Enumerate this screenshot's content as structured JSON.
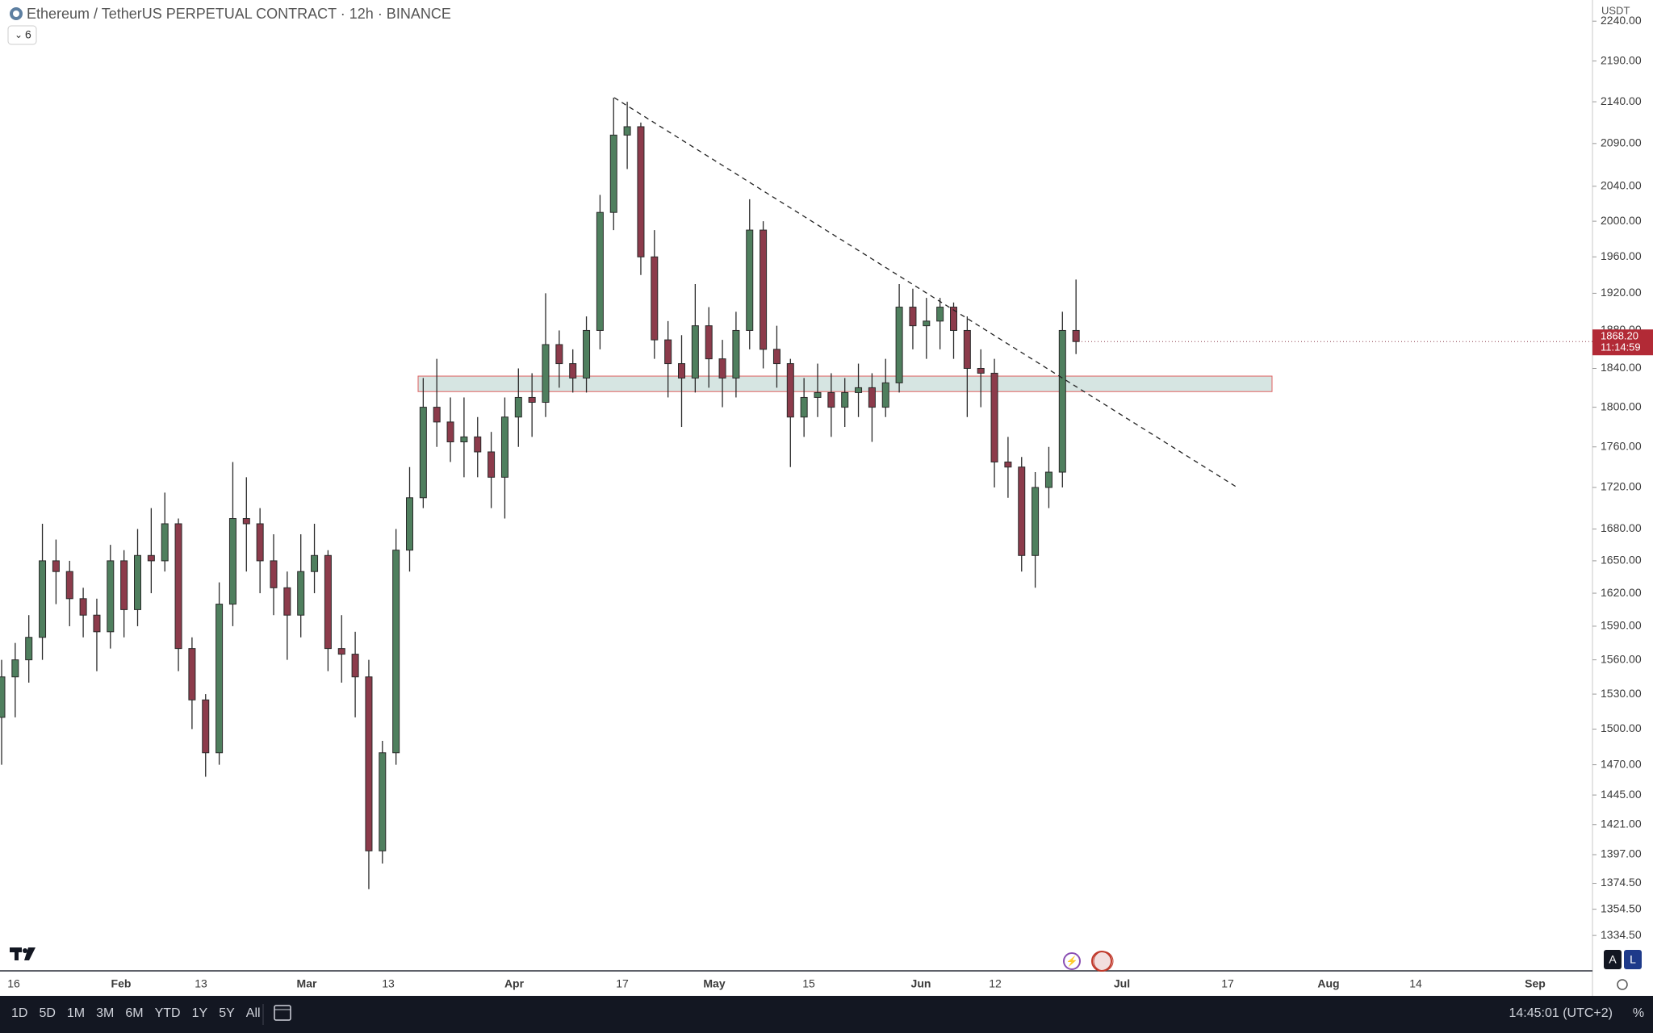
{
  "ui": {
    "ranges": [
      "1D",
      "5D",
      "1M",
      "3M",
      "6M",
      "YTD",
      "1Y",
      "5Y",
      "All"
    ],
    "clock": "14:45:01 (UTC+2)",
    "percent": "%",
    "currency": "USDT",
    "indicators": "6",
    "scale_buttons": [
      "A",
      "L"
    ]
  },
  "chart_data": {
    "type": "candlestick",
    "title": "Ethereum / TetherUS PERPETUAL CONTRACT · 12h · BINANCE",
    "log_scale": true,
    "up_color": "#4f7f5e",
    "down_color": "#8c3b4b",
    "open": [
      1510,
      1545,
      1560,
      1580,
      1650,
      1640,
      1615,
      1600,
      1585,
      1650,
      1605,
      1655,
      1650,
      1685,
      1570,
      1525,
      1480,
      1610,
      1690,
      1685,
      1650,
      1625,
      1600,
      1640,
      1655,
      1570,
      1565,
      1545,
      1400,
      1480,
      1660,
      1710,
      1800,
      1785,
      1765,
      1770,
      1755,
      1730,
      1790,
      1810,
      1805,
      1865,
      1845,
      1830,
      1880,
      2010,
      2100,
      2110,
      1960,
      1870,
      1845,
      1830,
      1885,
      1850,
      1830,
      1880,
      1990,
      1860,
      1845,
      1790,
      1810,
      1815,
      1800,
      1815,
      1820,
      1800,
      1825,
      1905,
      1885,
      1890,
      1905,
      1880,
      1840,
      1835,
      1745,
      1740,
      1655,
      1720,
      1735,
      1880
    ],
    "high": [
      1560,
      1575,
      1600,
      1685,
      1670,
      1650,
      1625,
      1615,
      1665,
      1660,
      1680,
      1700,
      1715,
      1690,
      1580,
      1530,
      1630,
      1745,
      1730,
      1700,
      1675,
      1640,
      1675,
      1685,
      1660,
      1600,
      1585,
      1560,
      1490,
      1680,
      1740,
      1830,
      1850,
      1810,
      1810,
      1790,
      1775,
      1810,
      1840,
      1835,
      1920,
      1880,
      1860,
      1895,
      2030,
      2145,
      2140,
      2115,
      1990,
      1890,
      1875,
      1930,
      1905,
      1870,
      1900,
      2025,
      2000,
      1885,
      1850,
      1830,
      1845,
      1835,
      1830,
      1845,
      1835,
      1850,
      1930,
      1925,
      1915,
      1915,
      1910,
      1895,
      1860,
      1850,
      1770,
      1750,
      1735,
      1760,
      1900,
      1935
    ],
    "low": [
      1470,
      1510,
      1540,
      1560,
      1610,
      1590,
      1580,
      1550,
      1570,
      1580,
      1590,
      1620,
      1640,
      1550,
      1500,
      1460,
      1470,
      1590,
      1640,
      1620,
      1600,
      1560,
      1580,
      1620,
      1550,
      1540,
      1510,
      1370,
      1390,
      1470,
      1640,
      1700,
      1760,
      1745,
      1730,
      1730,
      1700,
      1690,
      1760,
      1770,
      1790,
      1820,
      1815,
      1815,
      1860,
      1990,
      2060,
      1940,
      1850,
      1810,
      1780,
      1815,
      1820,
      1800,
      1810,
      1860,
      1840,
      1820,
      1740,
      1770,
      1790,
      1770,
      1780,
      1790,
      1765,
      1790,
      1815,
      1860,
      1850,
      1860,
      1850,
      1790,
      1800,
      1720,
      1710,
      1640,
      1625,
      1700,
      1720,
      1855
    ],
    "close": [
      1545,
      1560,
      1580,
      1650,
      1640,
      1615,
      1600,
      1585,
      1650,
      1605,
      1655,
      1650,
      1685,
      1570,
      1525,
      1480,
      1610,
      1690,
      1685,
      1650,
      1625,
      1600,
      1640,
      1655,
      1570,
      1565,
      1545,
      1400,
      1480,
      1660,
      1710,
      1800,
      1785,
      1765,
      1770,
      1755,
      1730,
      1790,
      1810,
      1805,
      1865,
      1845,
      1830,
      1880,
      2010,
      2100,
      2110,
      1960,
      1870,
      1845,
      1830,
      1885,
      1850,
      1830,
      1880,
      1990,
      1860,
      1845,
      1790,
      1810,
      1815,
      1800,
      1815,
      1820,
      1800,
      1825,
      1905,
      1885,
      1890,
      1905,
      1880,
      1840,
      1835,
      1745,
      1740,
      1655,
      1720,
      1735,
      1880,
      1868.2
    ],
    "ylim": [
      1308,
      2267
    ],
    "yticks": [
      {
        "value": 2240,
        "label": "2240.00"
      },
      {
        "value": 2190,
        "label": "2190.00"
      },
      {
        "value": 2140,
        "label": "2140.00"
      },
      {
        "value": 2090,
        "label": "2090.00"
      },
      {
        "value": 2040,
        "label": "2040.00"
      },
      {
        "value": 2000,
        "label": "2000.00"
      },
      {
        "value": 1960,
        "label": "1960.00"
      },
      {
        "value": 1920,
        "label": "1920.00"
      },
      {
        "value": 1880,
        "label": "1880.00"
      },
      {
        "value": 1840,
        "label": "1840.00"
      },
      {
        "value": 1800,
        "label": "1800.00"
      },
      {
        "value": 1760,
        "label": "1760.00"
      },
      {
        "value": 1720,
        "label": "1720.00"
      },
      {
        "value": 1680,
        "label": "1680.00"
      },
      {
        "value": 1650,
        "label": "1650.00"
      },
      {
        "value": 1620,
        "label": "1620.00"
      },
      {
        "value": 1590,
        "label": "1590.00"
      },
      {
        "value": 1560,
        "label": "1560.00"
      },
      {
        "value": 1530,
        "label": "1530.00"
      },
      {
        "value": 1500,
        "label": "1500.00"
      },
      {
        "value": 1470,
        "label": "1470.00"
      },
      {
        "value": 1445,
        "label": "1445.00"
      },
      {
        "value": 1421,
        "label": "1421.00"
      },
      {
        "value": 1397,
        "label": "1397.00"
      },
      {
        "value": 1374.5,
        "label": "1374.50"
      },
      {
        "value": 1354.5,
        "label": "1354.50"
      },
      {
        "value": 1334.5,
        "label": "1334.50"
      }
    ],
    "xticks": [
      "16",
      "Feb",
      "13",
      "Mar",
      "13",
      "Apr",
      "17",
      "May",
      "15",
      "Jun",
      "12",
      "Jul",
      "17",
      "Aug",
      "14",
      "Sep"
    ],
    "last_price": {
      "value": 1868.2,
      "label": "1868.20"
    },
    "countdown": "11:14:59",
    "zone": [
      1816,
      1832
    ],
    "trendline": [
      2145,
      1719
    ]
  }
}
